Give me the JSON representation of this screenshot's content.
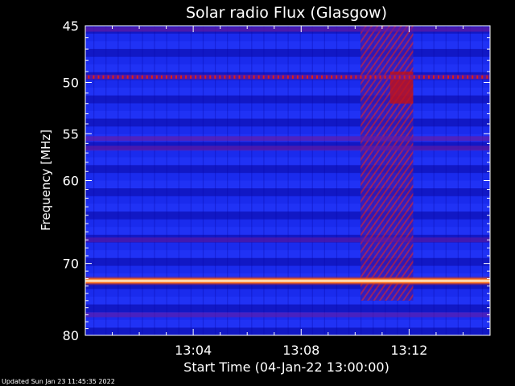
{
  "chart_data": {
    "type": "heatmap",
    "title": "Solar radio Flux (Glasgow)",
    "xlabel": "Start Time (04-Jan-22 13:00:00)",
    "ylabel": "Frequency [MHz]",
    "x_unit": "minutes after 13:00:00",
    "xlim": [
      0,
      15
    ],
    "x_ticks": [
      {
        "value": 4,
        "label": "13:04"
      },
      {
        "value": 8,
        "label": "13:08"
      },
      {
        "value": 12,
        "label": "13:12"
      }
    ],
    "y_scale": "log",
    "ylim": [
      45,
      80
    ],
    "y_ticks": [
      {
        "value": 45,
        "label": "45"
      },
      {
        "value": 50,
        "label": "50"
      },
      {
        "value": 55,
        "label": "55"
      },
      {
        "value": 60,
        "label": "60"
      },
      {
        "value": 70,
        "label": "70"
      },
      {
        "value": 80,
        "label": "80"
      }
    ],
    "colormap": [
      "#0a0aa8",
      "#1a2cf0",
      "#6a1aa0",
      "#c0101a",
      "#ff5010",
      "#fff0a0"
    ],
    "bright_bands": [
      {
        "freq": 72.3,
        "intensity": 1.0
      },
      {
        "freq": 49.5,
        "intensity": 0.6
      },
      {
        "freq": 55.5,
        "intensity": 0.45
      },
      {
        "freq": 56.5,
        "intensity": 0.45
      },
      {
        "freq": 45.3,
        "intensity": 0.5
      },
      {
        "freq": 77.0,
        "intensity": 0.35
      },
      {
        "freq": 67.0,
        "intensity": 0.3
      }
    ],
    "burst": {
      "x_start": 10.2,
      "x_end": 12.15,
      "freq_start": 45,
      "freq_end": 75
    }
  },
  "footer": {
    "updated": "Updated Sun Jan 23 11:45:35 2022"
  }
}
